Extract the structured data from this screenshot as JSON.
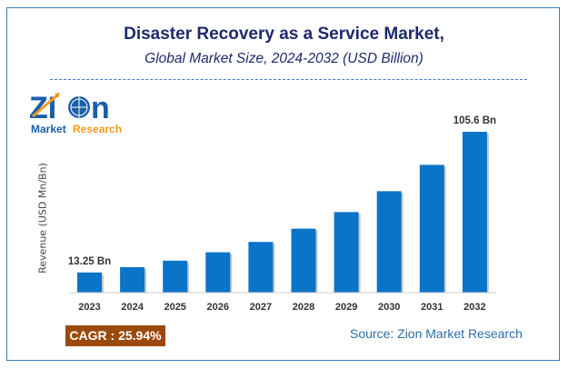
{
  "chart_data": {
    "type": "bar",
    "title": "Disaster Recovery as a Service Market,",
    "subtitle": "Global Market Size, 2024-2032 (USD Billion)",
    "ylabel": "Revenue (USD Mn/Bn)",
    "xlabel": "",
    "categories": [
      "2023",
      "2024",
      "2025",
      "2026",
      "2027",
      "2028",
      "2029",
      "2030",
      "2031",
      "2032"
    ],
    "values": [
      13.25,
      16.7,
      21.0,
      26.5,
      33.3,
      42.0,
      52.9,
      66.6,
      83.9,
      105.6
    ],
    "data_labels": {
      "first": "13.25 Bn",
      "last": "105.6 Bn"
    },
    "ylim": [
      0,
      105.6
    ],
    "grid": false,
    "bar_color": "#0a74c9"
  },
  "logo": {
    "word": "ZION",
    "tagline_left": "Market",
    "tagline_right": "Research"
  },
  "cagr": "CAGR :  25.94%",
  "source": "Source: Zion Market Research",
  "colors": {
    "title": "#1f2a6b",
    "cagr_bg": "#9a4a0c",
    "source": "#2e6da4",
    "frame": "#3a7fc1"
  }
}
